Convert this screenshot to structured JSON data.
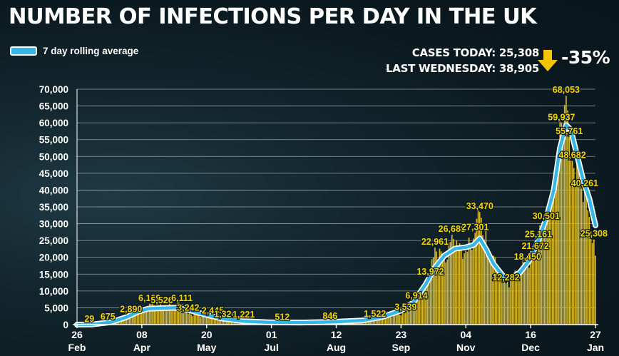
{
  "chart_data": {
    "type": "bar",
    "title": "NUMBER OF INFECTIONS PER DAY IN THE UK",
    "legend": [
      {
        "label": "7 day rolling average",
        "color": "#34b6e6"
      }
    ],
    "stats": {
      "cases_today": "CASES TODAY: 25,308",
      "last_wednesday": "LAST WEDNESDAY: 38,905",
      "change": "-35%"
    },
    "colors": {
      "bars": "#d4b62a",
      "average_line": "#34b6e6",
      "labels": "#f3d400",
      "arrow": "#f2c500"
    },
    "ylim": [
      0,
      70000
    ],
    "yticks": [
      {
        "value": 0,
        "label": "0"
      },
      {
        "value": 5000,
        "label": "5,000"
      },
      {
        "value": 10000,
        "label": "10,000"
      },
      {
        "value": 15000,
        "label": "15,000"
      },
      {
        "value": 20000,
        "label": "20,000"
      },
      {
        "value": 25000,
        "label": "25,000"
      },
      {
        "value": 30000,
        "label": "30,000"
      },
      {
        "value": 35000,
        "label": "35,000"
      },
      {
        "value": 40000,
        "label": "40,000"
      },
      {
        "value": 45000,
        "label": "45,000"
      },
      {
        "value": 50000,
        "label": "50,000"
      },
      {
        "value": 55000,
        "label": "55,000"
      },
      {
        "value": 60000,
        "label": "60,000"
      },
      {
        "value": 65000,
        "label": "65,000"
      },
      {
        "value": 70000,
        "label": "70,000"
      }
    ],
    "grid": true,
    "xticks": [
      {
        "day": 0,
        "day_label": "26",
        "month_label": "Feb"
      },
      {
        "day": 42,
        "day_label": "08",
        "month_label": "Apr"
      },
      {
        "day": 84,
        "day_label": "20",
        "month_label": "May"
      },
      {
        "day": 126,
        "day_label": "01",
        "month_label": "Jul"
      },
      {
        "day": 168,
        "day_label": "12",
        "month_label": "Aug"
      },
      {
        "day": 210,
        "day_label": "23",
        "month_label": "Sep"
      },
      {
        "day": 252,
        "day_label": "04",
        "month_label": "Nov"
      },
      {
        "day": 294,
        "day_label": "16",
        "month_label": "Dec"
      },
      {
        "day": 336,
        "day_label": "27",
        "month_label": "Jan"
      }
    ],
    "day_range": [
      0,
      336
    ],
    "key_points": [
      {
        "day": 0,
        "value": 0
      },
      {
        "day": 8,
        "value": 29
      },
      {
        "day": 20,
        "value": 675
      },
      {
        "day": 29,
        "value": 1900
      },
      {
        "day": 35,
        "value": 2890
      },
      {
        "day": 43,
        "value": 4200
      },
      {
        "day": 47,
        "value": 6199
      },
      {
        "day": 55,
        "value": 5526
      },
      {
        "day": 68,
        "value": 6111
      },
      {
        "day": 72,
        "value": 3242
      },
      {
        "day": 82,
        "value": 2400
      },
      {
        "day": 88,
        "value": 2445
      },
      {
        "day": 96,
        "value": 1326
      },
      {
        "day": 108,
        "value": 1221
      },
      {
        "day": 120,
        "value": 800
      },
      {
        "day": 133,
        "value": 512
      },
      {
        "day": 150,
        "value": 700
      },
      {
        "day": 164,
        "value": 846
      },
      {
        "day": 180,
        "value": 900
      },
      {
        "day": 193,
        "value": 1522
      },
      {
        "day": 205,
        "value": 2600
      },
      {
        "day": 213,
        "value": 3539
      },
      {
        "day": 220,
        "value": 6914
      },
      {
        "day": 229,
        "value": 13972
      },
      {
        "day": 232,
        "value": 22961
      },
      {
        "day": 239,
        "value": 18500
      },
      {
        "day": 243,
        "value": 26688
      },
      {
        "day": 249,
        "value": 22000
      },
      {
        "day": 255,
        "value": 22500
      },
      {
        "day": 258,
        "value": 27301
      },
      {
        "day": 261,
        "value": 33470
      },
      {
        "day": 266,
        "value": 23000
      },
      {
        "day": 273,
        "value": 17000
      },
      {
        "day": 278,
        "value": 12282
      },
      {
        "day": 285,
        "value": 14500
      },
      {
        "day": 292,
        "value": 18450
      },
      {
        "day": 297,
        "value": 21672
      },
      {
        "day": 299,
        "value": 25161
      },
      {
        "day": 304,
        "value": 30501
      },
      {
        "day": 308,
        "value": 38000
      },
      {
        "day": 312,
        "value": 50000
      },
      {
        "day": 314,
        "value": 59937
      },
      {
        "day": 317,
        "value": 68053
      },
      {
        "day": 319,
        "value": 55761
      },
      {
        "day": 321,
        "value": 48682
      },
      {
        "day": 326,
        "value": 44000
      },
      {
        "day": 329,
        "value": 40261
      },
      {
        "day": 332,
        "value": 32000
      },
      {
        "day": 335,
        "value": 25308
      },
      {
        "day": 336,
        "value": 20500
      }
    ],
    "rolling_average": [
      {
        "day": 0,
        "value": 0
      },
      {
        "day": 10,
        "value": 60
      },
      {
        "day": 22,
        "value": 700
      },
      {
        "day": 32,
        "value": 2200
      },
      {
        "day": 40,
        "value": 3900
      },
      {
        "day": 46,
        "value": 4700
      },
      {
        "day": 56,
        "value": 4900
      },
      {
        "day": 64,
        "value": 5000
      },
      {
        "day": 72,
        "value": 4400
      },
      {
        "day": 82,
        "value": 3100
      },
      {
        "day": 94,
        "value": 1800
      },
      {
        "day": 108,
        "value": 1000
      },
      {
        "day": 125,
        "value": 650
      },
      {
        "day": 145,
        "value": 620
      },
      {
        "day": 165,
        "value": 800
      },
      {
        "day": 185,
        "value": 1200
      },
      {
        "day": 198,
        "value": 2300
      },
      {
        "day": 210,
        "value": 4200
      },
      {
        "day": 218,
        "value": 6600
      },
      {
        "day": 226,
        "value": 12000
      },
      {
        "day": 232,
        "value": 17000
      },
      {
        "day": 238,
        "value": 20500
      },
      {
        "day": 245,
        "value": 22600
      },
      {
        "day": 252,
        "value": 23000
      },
      {
        "day": 257,
        "value": 23700
      },
      {
        "day": 261,
        "value": 25600
      },
      {
        "day": 265,
        "value": 22500
      },
      {
        "day": 270,
        "value": 18000
      },
      {
        "day": 276,
        "value": 14500
      },
      {
        "day": 281,
        "value": 13800
      },
      {
        "day": 287,
        "value": 15500
      },
      {
        "day": 293,
        "value": 19000
      },
      {
        "day": 299,
        "value": 25000
      },
      {
        "day": 304,
        "value": 31500
      },
      {
        "day": 309,
        "value": 40000
      },
      {
        "day": 313,
        "value": 52500
      },
      {
        "day": 317,
        "value": 59300
      },
      {
        "day": 320,
        "value": 58000
      },
      {
        "day": 324,
        "value": 50500
      },
      {
        "day": 328,
        "value": 43000
      },
      {
        "day": 332,
        "value": 37500
      },
      {
        "day": 336,
        "value": 29500
      }
    ],
    "data_labels": [
      {
        "day": 8,
        "value": 29,
        "text": "29"
      },
      {
        "day": 20,
        "value": 675,
        "text": "675"
      },
      {
        "day": 35,
        "value": 2890,
        "text": "2,890"
      },
      {
        "day": 47,
        "value": 6199,
        "text": "6,199"
      },
      {
        "day": 55,
        "value": 5526,
        "text": "5,526"
      },
      {
        "day": 68,
        "value": 6111,
        "text": "6,111"
      },
      {
        "day": 72,
        "value": 3242,
        "text": "3,242"
      },
      {
        "day": 88,
        "value": 2445,
        "text": "2,445"
      },
      {
        "day": 96,
        "value": 1326,
        "text": "1,326"
      },
      {
        "day": 108,
        "value": 1221,
        "text": "1,221"
      },
      {
        "day": 133,
        "value": 512,
        "text": "512"
      },
      {
        "day": 164,
        "value": 846,
        "text": "846"
      },
      {
        "day": 193,
        "value": 1522,
        "text": "1,522"
      },
      {
        "day": 213,
        "value": 3539,
        "text": "3,539"
      },
      {
        "day": 220,
        "value": 6914,
        "text": "6,914"
      },
      {
        "day": 229,
        "value": 13972,
        "text": "13,972"
      },
      {
        "day": 232,
        "value": 22961,
        "text": "22,961"
      },
      {
        "day": 243,
        "value": 26688,
        "text": "26,688"
      },
      {
        "day": 258,
        "value": 27301,
        "text": "27,301"
      },
      {
        "day": 261,
        "value": 33470,
        "text": "33,470"
      },
      {
        "day": 278,
        "value": 12282,
        "text": "12,282"
      },
      {
        "day": 292,
        "value": 18450,
        "text": "18,450"
      },
      {
        "day": 297,
        "value": 21672,
        "text": "21,672"
      },
      {
        "day": 299,
        "value": 25161,
        "text": "25,161"
      },
      {
        "day": 304,
        "value": 30501,
        "text": "30,501"
      },
      {
        "day": 314,
        "value": 59937,
        "text": "59,937"
      },
      {
        "day": 317,
        "value": 68053,
        "text": "68,053"
      },
      {
        "day": 319,
        "value": 55761,
        "text": "55,761"
      },
      {
        "day": 321,
        "value": 48682,
        "text": "48,682"
      },
      {
        "day": 329,
        "value": 40261,
        "text": "40,261"
      },
      {
        "day": 335,
        "value": 25308,
        "text": "25,308"
      }
    ]
  }
}
